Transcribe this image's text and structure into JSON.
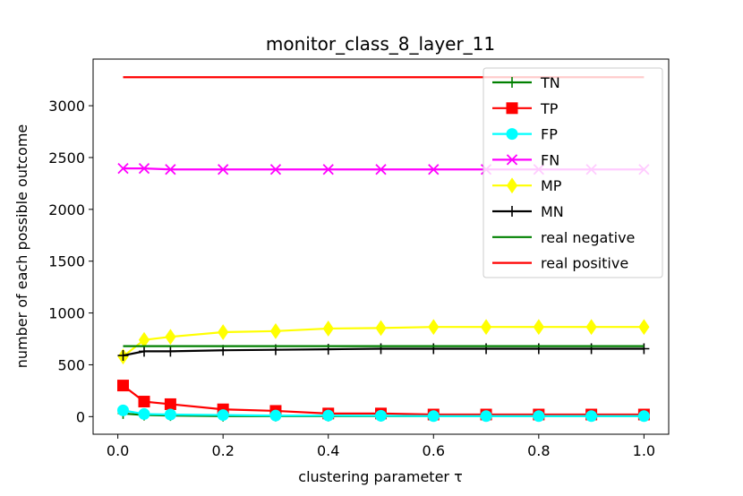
{
  "chart_data": {
    "type": "line",
    "title": "monitor_class_8_layer_11",
    "xlabel": "clustering parameter τ",
    "ylabel": "number of each possible outcome",
    "xlim": [
      -0.047,
      1.047
    ],
    "ylim": [
      -170,
      3450
    ],
    "x_ticks": [
      0.0,
      0.2,
      0.4,
      0.6,
      0.8,
      1.0
    ],
    "x_tick_labels": [
      "0.0",
      "0.2",
      "0.4",
      "0.6",
      "0.8",
      "1.0"
    ],
    "y_ticks": [
      0,
      500,
      1000,
      1500,
      2000,
      2500,
      3000
    ],
    "y_tick_labels": [
      "0",
      "500",
      "1000",
      "1500",
      "2000",
      "2500",
      "3000"
    ],
    "grid": false,
    "legend_position": "top-right",
    "x": [
      0.01,
      0.05,
      0.1,
      0.2,
      0.3,
      0.4,
      0.5,
      0.6,
      0.7,
      0.8,
      0.9,
      1.0
    ],
    "series": [
      {
        "name": "TN",
        "color": "#008000",
        "marker": "plus",
        "values": [
          30,
          15,
          10,
          5,
          5,
          5,
          5,
          5,
          5,
          5,
          5,
          5
        ]
      },
      {
        "name": "TP",
        "color": "#ff0000",
        "marker": "square",
        "values": [
          300,
          145,
          120,
          70,
          55,
          30,
          30,
          20,
          20,
          20,
          20,
          20
        ]
      },
      {
        "name": "FP",
        "color": "#00ffff",
        "marker": "circle",
        "values": [
          60,
          25,
          20,
          15,
          10,
          10,
          8,
          5,
          5,
          5,
          5,
          5
        ]
      },
      {
        "name": "FN",
        "color": "#ff00ff",
        "marker": "x",
        "values": [
          2395,
          2395,
          2385,
          2385,
          2385,
          2385,
          2385,
          2385,
          2385,
          2385,
          2385,
          2385
        ]
      },
      {
        "name": "MP",
        "color": "#ffff00",
        "marker": "diamond",
        "values": [
          580,
          740,
          770,
          815,
          825,
          850,
          855,
          865,
          865,
          865,
          865,
          865
        ]
      },
      {
        "name": "MN",
        "color": "#000000",
        "marker": "plus",
        "values": [
          590,
          630,
          630,
          640,
          645,
          650,
          655,
          655,
          655,
          655,
          655,
          655
        ]
      },
      {
        "name": "real negative",
        "color": "#008000",
        "marker": "none",
        "values": [
          680,
          680,
          680,
          680,
          680,
          680,
          680,
          680,
          680,
          680,
          680,
          680
        ]
      },
      {
        "name": "real positive",
        "color": "#ff0000",
        "marker": "none",
        "values": [
          3275,
          3275,
          3275,
          3275,
          3275,
          3275,
          3275,
          3275,
          3275,
          3275,
          3275,
          3275
        ]
      }
    ]
  }
}
